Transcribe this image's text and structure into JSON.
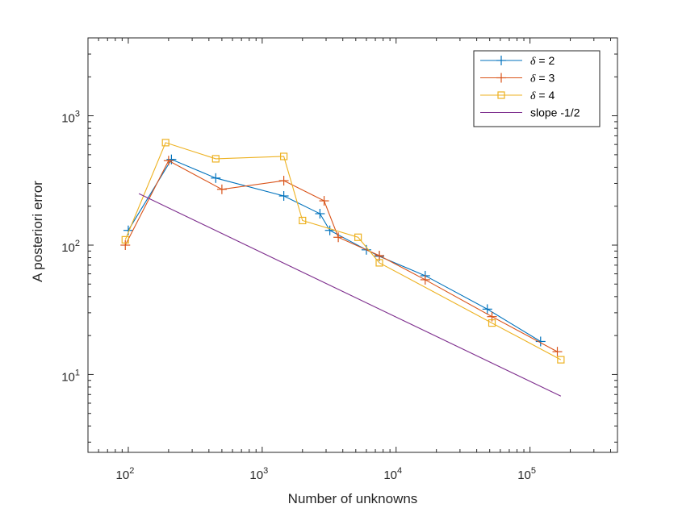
{
  "chart_data": {
    "type": "line",
    "scale": {
      "x": "log",
      "y": "log"
    },
    "xlabel": "Number of unknowns",
    "ylabel": "A posteriori error",
    "xlim": [
      50,
      450000
    ],
    "ylim": [
      2.5,
      4000
    ],
    "xticks": [
      {
        "value": 100,
        "base": "10",
        "exp": "2"
      },
      {
        "value": 1000,
        "base": "10",
        "exp": "3"
      },
      {
        "value": 10000,
        "base": "10",
        "exp": "4"
      },
      {
        "value": 100000,
        "base": "10",
        "exp": "5"
      }
    ],
    "yticks": [
      {
        "value": 10,
        "base": "10",
        "exp": "1"
      },
      {
        "value": 100,
        "base": "10",
        "exp": "2"
      },
      {
        "value": 1000,
        "base": "10",
        "exp": "3"
      }
    ],
    "grid": false,
    "legend_position": "top-right",
    "series": [
      {
        "name": "δ = 2",
        "label_symbol": "δ",
        "label_rest": " = 2",
        "color": "#0072BD",
        "marker": "plus",
        "x": [
          100,
          210,
          450,
          1450,
          2700,
          3200,
          6000,
          7500,
          16500,
          48000,
          120000
        ],
        "y": [
          130,
          460,
          330,
          240,
          175,
          130,
          92,
          82,
          58,
          32,
          18
        ]
      },
      {
        "name": "δ = 3",
        "label_symbol": "δ",
        "label_rest": " = 3",
        "color": "#D95319",
        "marker": "plus",
        "x": [
          95,
          200,
          500,
          1450,
          2900,
          3700,
          7500,
          16500,
          52000,
          160000
        ],
        "y": [
          100,
          450,
          270,
          315,
          220,
          115,
          83,
          54,
          28,
          15
        ]
      },
      {
        "name": "δ = 4",
        "label_symbol": "δ",
        "label_rest": " = 4",
        "color": "#EDB120",
        "marker": "square",
        "x": [
          95,
          190,
          450,
          1450,
          2000,
          5200,
          7500,
          52000,
          170000
        ],
        "y": [
          110,
          620,
          465,
          485,
          155,
          115,
          73,
          25,
          13
        ]
      },
      {
        "name": "slope -1/2",
        "label_symbol": "",
        "label_rest": "slope -1/2",
        "color": "#7E2F8E",
        "marker": "none",
        "x": [
          120,
          170000
        ],
        "y": [
          250,
          6.8
        ]
      }
    ]
  }
}
